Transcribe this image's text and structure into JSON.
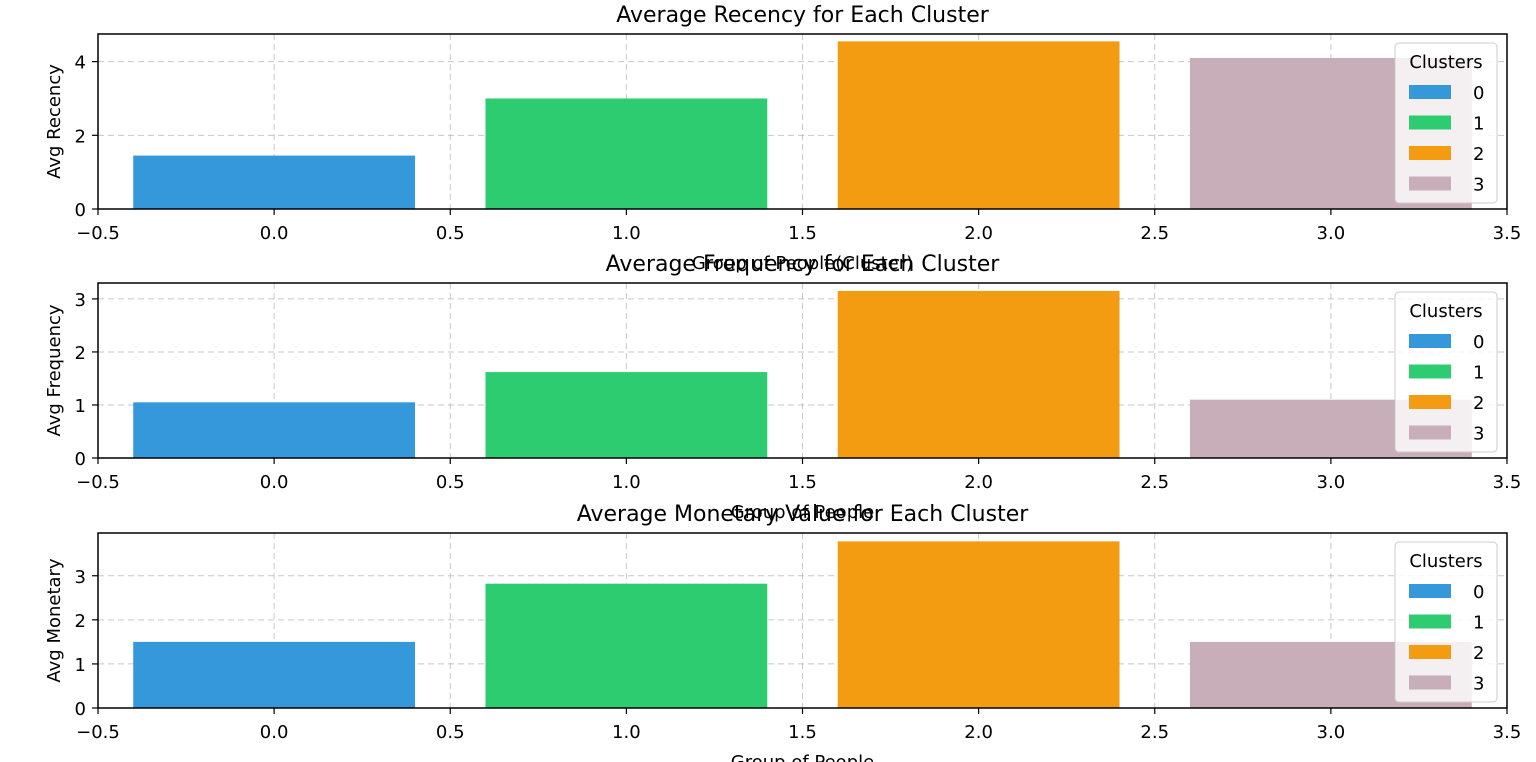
{
  "chart_data": [
    {
      "type": "bar",
      "title": "Average Recency for Each Cluster",
      "xlabel": "Group of People(Cluster)",
      "ylabel": "Avg Recency",
      "x": [
        0,
        1,
        2,
        3
      ],
      "values": [
        1.45,
        3.0,
        4.55,
        4.1
      ],
      "xlim": [
        -0.5,
        3.5
      ],
      "ylim": [
        0,
        4.75
      ],
      "xticks": [
        -0.5,
        0.0,
        0.5,
        1.0,
        1.5,
        2.0,
        2.5,
        3.0,
        3.5
      ],
      "xtick_labels": [
        "−0.5",
        "0.0",
        "0.5",
        "1.0",
        "1.5",
        "2.0",
        "2.5",
        "3.0",
        "3.5"
      ],
      "yticks": [
        0,
        2,
        4
      ],
      "ytick_labels": [
        "0",
        "2",
        "4"
      ],
      "grid": true,
      "legend_title": "Clusters",
      "legend_labels": [
        "0",
        "1",
        "2",
        "3"
      ],
      "legend_position": "top-right",
      "colors": [
        "#3498db",
        "#2ecc71",
        "#f39c12",
        "#c8aeb8"
      ]
    },
    {
      "type": "bar",
      "title": "Average Frequency for Each Cluster",
      "xlabel": "Group of People",
      "ylabel": "Avg Frequency",
      "x": [
        0,
        1,
        2,
        3
      ],
      "values": [
        1.05,
        1.62,
        3.15,
        1.1
      ],
      "xlim": [
        -0.5,
        3.5
      ],
      "ylim": [
        0,
        3.3
      ],
      "xticks": [
        -0.5,
        0.0,
        0.5,
        1.0,
        1.5,
        2.0,
        2.5,
        3.0,
        3.5
      ],
      "xtick_labels": [
        "−0.5",
        "0.0",
        "0.5",
        "1.0",
        "1.5",
        "2.0",
        "2.5",
        "3.0",
        "3.5"
      ],
      "yticks": [
        0,
        1,
        2,
        3
      ],
      "ytick_labels": [
        "0",
        "1",
        "2",
        "3"
      ],
      "grid": true,
      "legend_title": "Clusters",
      "legend_labels": [
        "0",
        "1",
        "2",
        "3"
      ],
      "legend_position": "top-right",
      "colors": [
        "#3498db",
        "#2ecc71",
        "#f39c12",
        "#c8aeb8"
      ]
    },
    {
      "type": "bar",
      "title": "Average Monetary Value for Each Cluster",
      "xlabel": "Group of People",
      "ylabel": "Avg Monetary",
      "x": [
        0,
        1,
        2,
        3
      ],
      "values": [
        1.5,
        2.82,
        3.78,
        1.5
      ],
      "xlim": [
        -0.5,
        3.5
      ],
      "ylim": [
        0,
        3.97
      ],
      "xticks": [
        -0.5,
        0.0,
        0.5,
        1.0,
        1.5,
        2.0,
        2.5,
        3.0,
        3.5
      ],
      "xtick_labels": [
        "−0.5",
        "0.0",
        "0.5",
        "1.0",
        "1.5",
        "2.0",
        "2.5",
        "3.0",
        "3.5"
      ],
      "yticks": [
        0,
        1,
        2,
        3
      ],
      "ytick_labels": [
        "0",
        "1",
        "2",
        "3"
      ],
      "grid": true,
      "legend_title": "Clusters",
      "legend_labels": [
        "0",
        "1",
        "2",
        "3"
      ],
      "legend_position": "top-right",
      "colors": [
        "#3498db",
        "#2ecc71",
        "#f39c12",
        "#c8aeb8"
      ]
    }
  ]
}
